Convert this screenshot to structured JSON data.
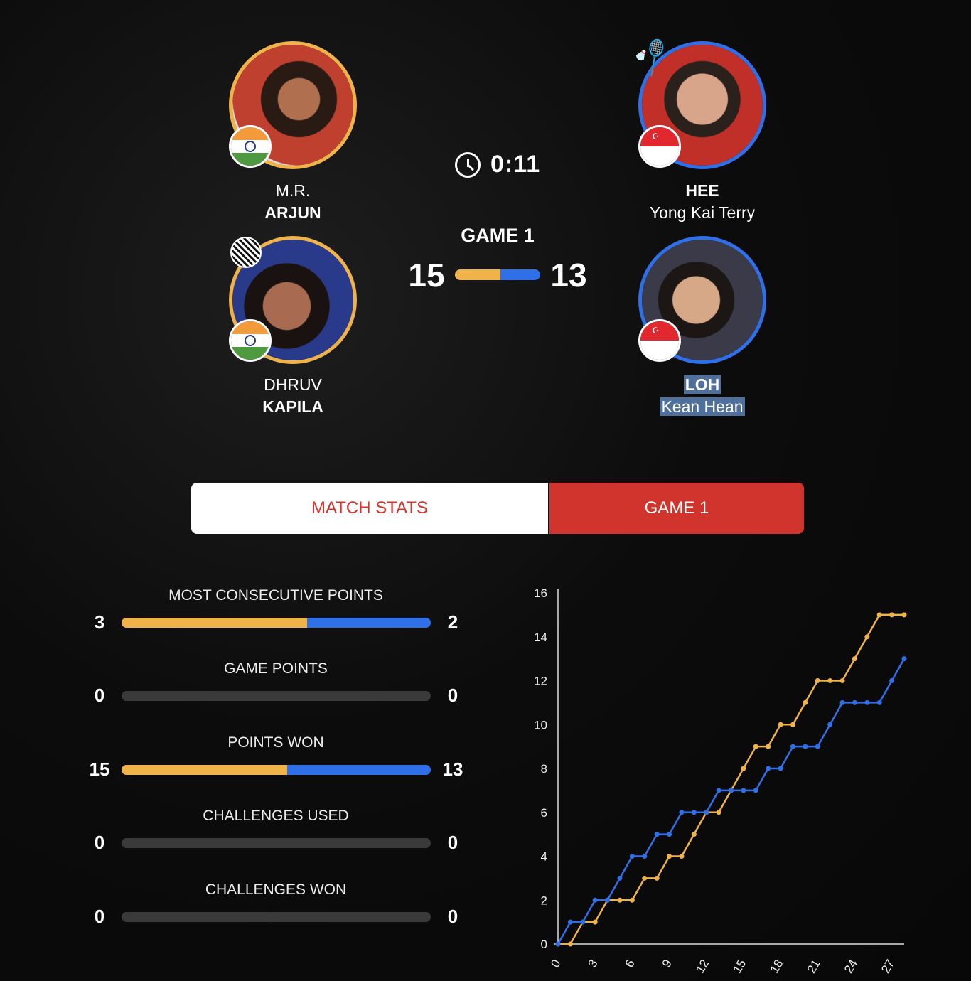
{
  "team_left": {
    "color": "#f0b34a",
    "players": [
      {
        "first": "M.R.",
        "last": "ARJUN",
        "country": "India",
        "serving": false
      },
      {
        "first": "DHRUV",
        "last": "KAPILA",
        "country": "India",
        "serving": false
      }
    ]
  },
  "team_right": {
    "color": "#2f6fe8",
    "players": [
      {
        "last": "HEE",
        "first": "Yong Kai Terry",
        "country": "Singapore",
        "serving": true
      },
      {
        "last": "LOH",
        "first": "Kean Hean",
        "country": "Singapore",
        "serving": false
      }
    ]
  },
  "match": {
    "timer": "0:11",
    "game_label": "GAME 1",
    "score_left": "15",
    "score_right": "13",
    "score_share_left": 0.536
  },
  "tabs": [
    {
      "label": "MATCH STATS",
      "active": false
    },
    {
      "label": "GAME 1",
      "active": true
    }
  ],
  "colors": {
    "accent_red": "#d0342c",
    "left": "#f0b34a",
    "right": "#2f6fe8"
  },
  "stats": [
    {
      "label": "MOST CONSECUTIVE POINTS",
      "left": "3",
      "right": "2"
    },
    {
      "label": "GAME POINTS",
      "left": "0",
      "right": "0"
    },
    {
      "label": "POINTS WON",
      "left": "15",
      "right": "13"
    },
    {
      "label": "CHALLENGES USED",
      "left": "0",
      "right": "0"
    },
    {
      "label": "CHALLENGES WON",
      "left": "0",
      "right": "0"
    }
  ],
  "chart_data": {
    "type": "line",
    "x": [
      0,
      1,
      2,
      3,
      4,
      5,
      6,
      7,
      8,
      9,
      10,
      11,
      12,
      13,
      14,
      15,
      16,
      17,
      18,
      19,
      20,
      21,
      22,
      23,
      24,
      25,
      26,
      27,
      28
    ],
    "series": [
      {
        "color": "#f0b34a",
        "values": [
          0,
          0,
          1,
          1,
          2,
          2,
          2,
          3,
          3,
          4,
          4,
          5,
          6,
          6,
          7,
          8,
          9,
          9,
          10,
          10,
          11,
          12,
          12,
          12,
          13,
          14,
          15,
          15,
          15
        ]
      },
      {
        "color": "#2f6fe8",
        "values": [
          0,
          1,
          1,
          2,
          2,
          3,
          4,
          4,
          5,
          5,
          6,
          6,
          6,
          7,
          7,
          7,
          7,
          8,
          8,
          9,
          9,
          9,
          10,
          11,
          11,
          11,
          11,
          12,
          13
        ]
      }
    ],
    "xlim": [
      0,
      28
    ],
    "ylim": [
      0,
      16
    ],
    "x_ticks": [
      "0",
      "3",
      "6",
      "9",
      "12",
      "15",
      "18",
      "21",
      "24",
      "27"
    ],
    "y_ticks": [
      "0",
      "2",
      "4",
      "6",
      "8",
      "10",
      "12",
      "14",
      "16"
    ],
    "grid": false
  }
}
